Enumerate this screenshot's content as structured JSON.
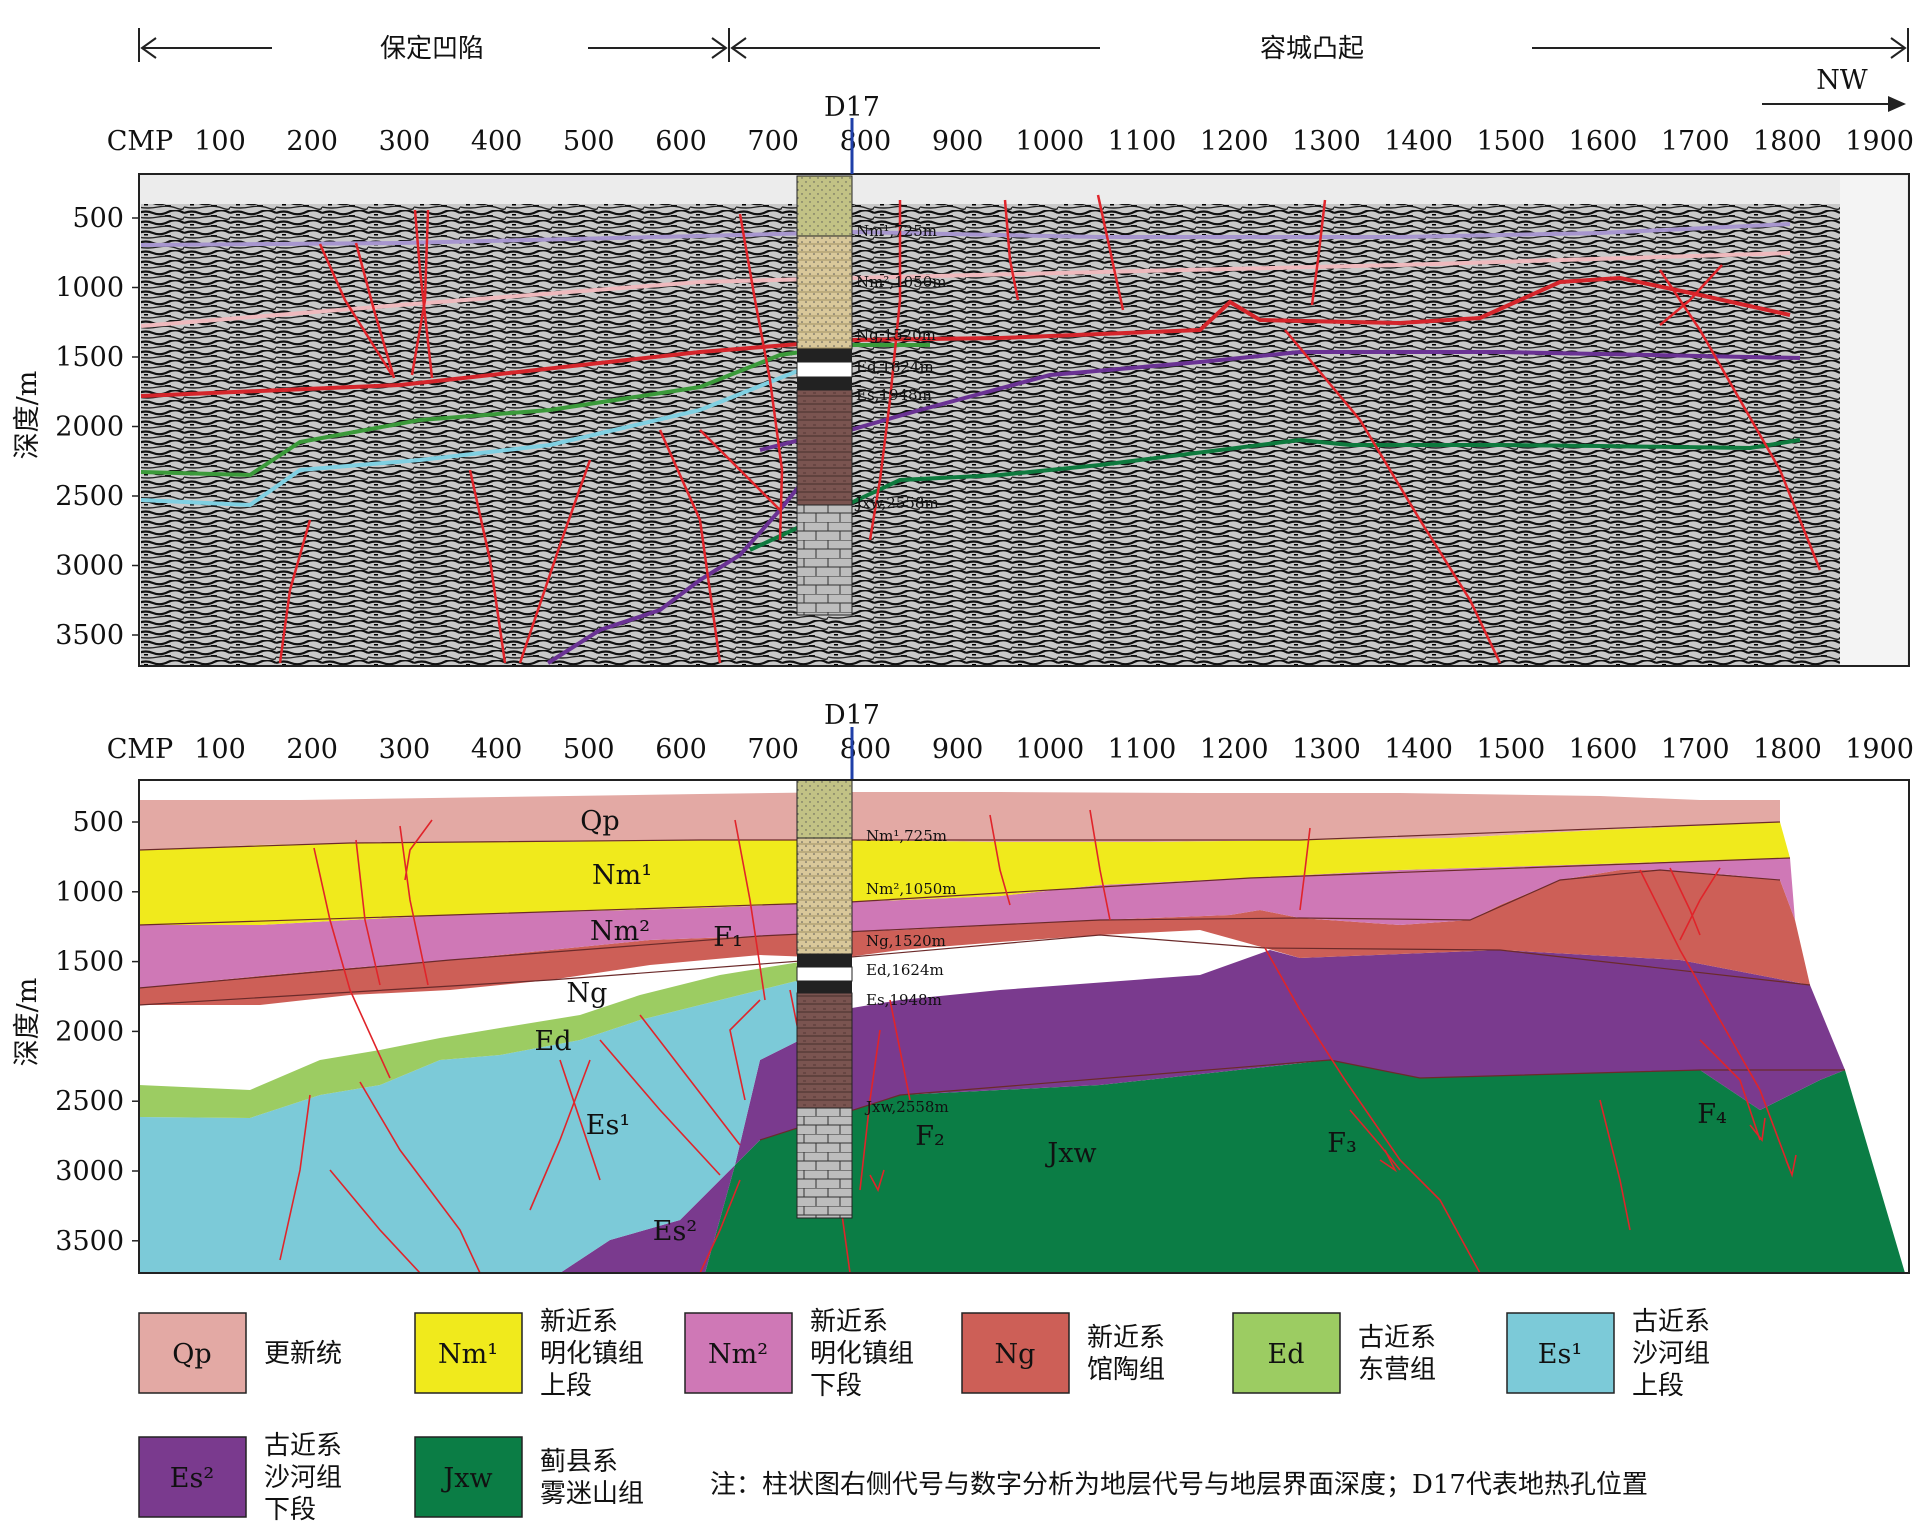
{
  "header": {
    "left_region": "保定凹陷",
    "right_region": "容城凸起",
    "direction": "NW"
  },
  "well_label": "D17",
  "axis": {
    "cmp_label": "CMP",
    "cmp_ticks": [
      "100",
      "200",
      "300",
      "400",
      "500",
      "600",
      "700",
      "800",
      "900",
      "1000",
      "1100",
      "1200",
      "1300",
      "1400",
      "1500",
      "1600",
      "1700",
      "1800",
      "1900"
    ],
    "depth_label": "深度/m",
    "depth_ticks": [
      "500",
      "1000",
      "1500",
      "2000",
      "2500",
      "3000",
      "3500"
    ]
  },
  "well_tops_seismic": [
    "Nm¹,725m",
    "Nm²,1050m",
    "Ng,1520m",
    "Ed,1624m",
    "Es,1948m",
    "Jxw,2558m"
  ],
  "well_tops_geo": [
    "Nm¹,725m",
    "Nm²,1050m",
    "Ng,1520m",
    "Ed,1624m",
    "Es,1948m",
    "Jxw,2558m"
  ],
  "unit_labels": {
    "qp": "Qp",
    "nm1": "Nm¹",
    "nm2": "Nm²",
    "ng": "Ng",
    "ed": "Ed",
    "es1": "Es¹",
    "es2": "Es²",
    "jxw": "Jxw"
  },
  "faults": {
    "f1": "F₁",
    "f2": "F₂",
    "f3": "F₃",
    "f4": "F₄"
  },
  "legend": [
    {
      "code": "Qp",
      "color": "#e3a9a4",
      "lines": [
        "更新统"
      ]
    },
    {
      "code": "Nm¹",
      "color": "#f0ea1c",
      "lines": [
        "新近系",
        "明化镇组",
        "上段"
      ]
    },
    {
      "code": "Nm²",
      "color": "#cf78b6",
      "lines": [
        "新近系",
        "明化镇组",
        "下段"
      ]
    },
    {
      "code": "Ng",
      "color": "#cd5f57",
      "lines": [
        "新近系",
        "馆陶组"
      ]
    },
    {
      "code": "Ed",
      "color": "#9ccc62",
      "lines": [
        "古近系",
        "东营组"
      ]
    },
    {
      "code": "Es¹",
      "color": "#7ccad8",
      "lines": [
        "古近系",
        "沙河组",
        "上段"
      ]
    },
    {
      "code": "Es²",
      "color": "#7a3a8e",
      "lines": [
        "古近系",
        "沙河组",
        "下段"
      ]
    },
    {
      "code": "Jxw",
      "color": "#0b7d45",
      "lines": [
        "蓟县系",
        "雾迷山组"
      ]
    }
  ],
  "note": "注：柱状图右侧代号与数字分析为地层代号与地层界面深度；D17代表地热孔位置",
  "colors": {
    "qp": "#e3a9a4",
    "nm1": "#f0ea1c",
    "nm2": "#cf78b6",
    "ng": "#cd5f57",
    "ed": "#9ccc62",
    "es1": "#7ccad8",
    "es2": "#7a3a8e",
    "jxw": "#0b7d45",
    "fault": "#e0242a",
    "well_line": "#1f3fa8"
  }
}
